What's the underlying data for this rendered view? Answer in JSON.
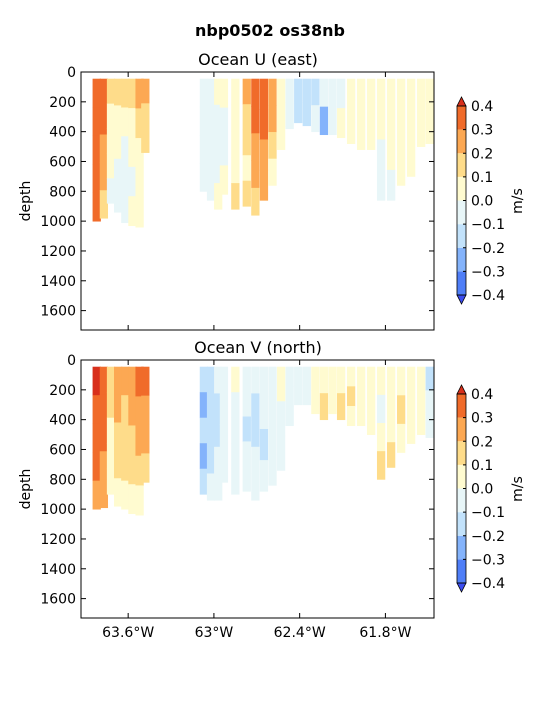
{
  "figure": {
    "title": "nbp0502 os38nb"
  },
  "chart_data": [
    {
      "type": "heatmap",
      "title": "Ocean U (east)",
      "ylabel": "depth",
      "y_inverted": true,
      "xlim": [
        -63.93,
        -61.46
      ],
      "ylim": [
        0,
        1730
      ],
      "yticks": [
        "0",
        "200",
        "400",
        "600",
        "800",
        "1000",
        "1200",
        "1400",
        "1600"
      ],
      "ytick_values": [
        0,
        200,
        400,
        600,
        800,
        1000,
        1200,
        1400,
        1600
      ],
      "xtick_values": [
        -63.6,
        -63.0,
        -62.4,
        -61.8
      ],
      "colorbar": {
        "label": "m/s",
        "levels": [
          -0.4,
          -0.3,
          -0.2,
          -0.1,
          0.0,
          0.1,
          0.2,
          0.3,
          0.4
        ],
        "tick_labels": [
          "−0.4",
          "−0.3",
          "−0.2",
          "−0.1",
          "0.0",
          "0.1",
          "0.2",
          "0.3",
          "0.4"
        ],
        "colors": [
          "#3b4cf0",
          "#4f7ef7",
          "#84b3fb",
          "#c2e2fb",
          "#e8f6f8",
          "#fffbd0",
          "#fedc8a",
          "#fca853",
          "#f06b2a",
          "#d8301c"
        ],
        "extend": "both"
      },
      "profiles": [
        {
          "lon": -63.82,
          "max_depth": 1000,
          "values": [
            0.36,
            0.38,
            0.35,
            0.32,
            0.3
          ]
        },
        {
          "lon": -63.77,
          "max_depth": 980,
          "values": [
            0.34,
            0.3,
            0.25,
            0.22,
            0.15
          ]
        },
        {
          "lon": -63.72,
          "max_depth": 880,
          "values": [
            0.12,
            0.08,
            0.02,
            0.0,
            -0.02
          ]
        },
        {
          "lon": -63.67,
          "max_depth": 940,
          "values": [
            0.1,
            0.05,
            0.0,
            -0.02,
            -0.05
          ]
        },
        {
          "lon": -63.62,
          "max_depth": 1010,
          "values": [
            0.14,
            0.06,
            -0.02,
            -0.05,
            -0.06
          ]
        },
        {
          "lon": -63.57,
          "max_depth": 1030,
          "values": [
            0.16,
            0.08,
            0.0,
            -0.04,
            0.02
          ]
        },
        {
          "lon": -63.52,
          "max_depth": 1040,
          "values": [
            0.2,
            0.12,
            0.04,
            0.02,
            0.04
          ]
        },
        {
          "lon": -63.48,
          "max_depth": 540,
          "values": [
            0.22,
            0.18,
            0.12
          ]
        },
        {
          "lon": -63.07,
          "max_depth": 800,
          "values": [
            -0.08,
            -0.06,
            -0.04,
            -0.05
          ]
        },
        {
          "lon": -63.02,
          "max_depth": 860,
          "values": [
            -0.06,
            -0.05,
            -0.04,
            -0.06
          ]
        },
        {
          "lon": -62.97,
          "max_depth": 920,
          "values": [
            0.02,
            -0.02,
            -0.06,
            -0.08,
            0.02
          ]
        },
        {
          "lon": -62.93,
          "max_depth": 820,
          "values": [
            0.04,
            -0.03,
            -0.05,
            0.0
          ]
        },
        {
          "lon": -62.85,
          "max_depth": 920,
          "values": [
            0.08,
            0.05,
            0.04,
            0.06,
            0.1
          ]
        },
        {
          "lon": -62.77,
          "max_depth": 900,
          "values": [
            0.2,
            0.16,
            0.1,
            0.08,
            0.12
          ]
        },
        {
          "lon": -62.71,
          "max_depth": 960,
          "values": [
            0.32,
            0.34,
            0.28,
            0.22,
            0.16
          ]
        },
        {
          "lon": -62.65,
          "max_depth": 860,
          "values": [
            0.36,
            0.32,
            0.26,
            0.2
          ]
        },
        {
          "lon": -62.59,
          "max_depth": 760,
          "values": [
            0.28,
            0.2,
            0.14,
            0.08
          ]
        },
        {
          "lon": -62.53,
          "max_depth": 520,
          "values": [
            0.04,
            0.02,
            0.0
          ]
        },
        {
          "lon": -62.47,
          "max_depth": 380,
          "values": [
            -0.06,
            -0.05
          ]
        },
        {
          "lon": -62.41,
          "max_depth": 340,
          "values": [
            -0.18,
            -0.16
          ]
        },
        {
          "lon": -62.35,
          "max_depth": 360,
          "values": [
            -0.16,
            -0.12
          ]
        },
        {
          "lon": -62.29,
          "max_depth": 400,
          "values": [
            -0.12,
            -0.1
          ]
        },
        {
          "lon": -62.23,
          "max_depth": 420,
          "values": [
            -0.1,
            -0.24
          ]
        },
        {
          "lon": -62.17,
          "max_depth": 420,
          "values": [
            -0.08,
            -0.06
          ]
        },
        {
          "lon": -62.11,
          "max_depth": 440,
          "values": [
            -0.04,
            0.0
          ]
        },
        {
          "lon": -62.04,
          "max_depth": 480,
          "values": [
            0.02,
            0.0,
            0.02
          ]
        },
        {
          "lon": -61.97,
          "max_depth": 520,
          "values": [
            0.04,
            0.02,
            0.02
          ]
        },
        {
          "lon": -61.9,
          "max_depth": 520,
          "values": [
            0.03,
            0.06,
            0.04
          ]
        },
        {
          "lon": -61.83,
          "max_depth": 860,
          "values": [
            0.02,
            0.0,
            -0.04,
            -0.05
          ]
        },
        {
          "lon": -61.76,
          "max_depth": 860,
          "values": [
            0.04,
            0.02,
            0.0,
            -0.04
          ]
        },
        {
          "lon": -61.69,
          "max_depth": 760,
          "values": [
            0.06,
            0.04,
            0.02,
            0.0
          ]
        },
        {
          "lon": -61.62,
          "max_depth": 700,
          "values": [
            0.08,
            0.06,
            0.04
          ]
        },
        {
          "lon": -61.55,
          "max_depth": 500,
          "values": [
            0.06,
            0.06,
            0.04
          ]
        },
        {
          "lon": -61.49,
          "max_depth": 480,
          "values": [
            0.04,
            0.02,
            0.04
          ]
        }
      ]
    },
    {
      "type": "heatmap",
      "title": "Ocean V (north)",
      "ylabel": "depth",
      "y_inverted": true,
      "xlim": [
        -63.93,
        -61.46
      ],
      "ylim": [
        0,
        1730
      ],
      "yticks": [
        "0",
        "200",
        "400",
        "600",
        "800",
        "1000",
        "1200",
        "1400",
        "1600"
      ],
      "ytick_values": [
        0,
        200,
        400,
        600,
        800,
        1000,
        1200,
        1400,
        1600
      ],
      "xticks": [
        "63.6°W",
        "63°W",
        "62.4°W",
        "61.8°W"
      ],
      "xtick_values": [
        -63.6,
        -63.0,
        -62.4,
        -61.8
      ],
      "colorbar": {
        "label": "m/s",
        "levels": [
          -0.4,
          -0.3,
          -0.2,
          -0.1,
          0.0,
          0.1,
          0.2,
          0.3,
          0.4
        ],
        "tick_labels": [
          "−0.4",
          "−0.3",
          "−0.2",
          "−0.1",
          "0.0",
          "0.1",
          "0.2",
          "0.3",
          "0.4"
        ],
        "colors": [
          "#3b4cf0",
          "#4f7ef7",
          "#84b3fb",
          "#c2e2fb",
          "#e8f6f8",
          "#fffbd0",
          "#fedc8a",
          "#fca853",
          "#f06b2a",
          "#d8301c"
        ],
        "extend": "both"
      },
      "profiles": [
        {
          "lon": -63.82,
          "max_depth": 1000,
          "values": [
            0.42,
            0.38,
            0.36,
            0.34,
            0.28
          ]
        },
        {
          "lon": -63.77,
          "max_depth": 990,
          "values": [
            0.36,
            0.34,
            0.3,
            0.26,
            0.2
          ]
        },
        {
          "lon": -63.72,
          "max_depth": 900,
          "values": [
            0.18,
            0.12,
            0.08,
            0.05,
            0.04
          ]
        },
        {
          "lon": -63.67,
          "max_depth": 980,
          "values": [
            0.24,
            0.2,
            0.16,
            0.1,
            0.04
          ]
        },
        {
          "lon": -63.62,
          "max_depth": 1000,
          "values": [
            0.26,
            0.18,
            0.14,
            0.12,
            0.06
          ]
        },
        {
          "lon": -63.57,
          "max_depth": 1030,
          "values": [
            0.28,
            0.22,
            0.18,
            0.14,
            0.06
          ]
        },
        {
          "lon": -63.52,
          "max_depth": 1040,
          "values": [
            0.3,
            0.24,
            0.2,
            0.14,
            0.08
          ]
        },
        {
          "lon": -63.48,
          "max_depth": 820,
          "values": [
            0.34,
            0.26,
            0.22,
            0.14
          ]
        },
        {
          "lon": -63.07,
          "max_depth": 900,
          "values": [
            -0.2,
            -0.22,
            -0.14,
            -0.24,
            -0.14
          ]
        },
        {
          "lon": -63.02,
          "max_depth": 940,
          "values": [
            -0.14,
            -0.18,
            -0.16,
            -0.12,
            -0.1
          ]
        },
        {
          "lon": -62.97,
          "max_depth": 940,
          "values": [
            -0.1,
            -0.12,
            -0.14,
            -0.1,
            -0.08
          ]
        },
        {
          "lon": -62.93,
          "max_depth": 820,
          "values": [
            -0.06,
            -0.08,
            -0.1,
            -0.08
          ]
        },
        {
          "lon": -62.85,
          "max_depth": 900,
          "values": [
            0.06,
            -0.04,
            -0.06,
            -0.08,
            -0.06
          ]
        },
        {
          "lon": -62.77,
          "max_depth": 880,
          "values": [
            -0.06,
            -0.08,
            -0.12,
            -0.08,
            -0.04
          ]
        },
        {
          "lon": -62.71,
          "max_depth": 940,
          "values": [
            -0.1,
            -0.12,
            -0.14,
            -0.1,
            -0.06
          ]
        },
        {
          "lon": -62.65,
          "max_depth": 880,
          "values": [
            -0.08,
            -0.1,
            -0.12,
            -0.06
          ]
        },
        {
          "lon": -62.59,
          "max_depth": 840,
          "values": [
            -0.04,
            -0.06,
            -0.1,
            -0.04
          ]
        },
        {
          "lon": -62.53,
          "max_depth": 740,
          "values": [
            0.02,
            -0.02,
            -0.04
          ]
        },
        {
          "lon": -62.47,
          "max_depth": 440,
          "values": [
            -0.02,
            -0.04,
            -0.06
          ]
        },
        {
          "lon": -62.41,
          "max_depth": 300,
          "values": [
            -0.04,
            -0.06
          ]
        },
        {
          "lon": -62.35,
          "max_depth": 300,
          "values": [
            -0.02,
            -0.04
          ]
        },
        {
          "lon": -62.29,
          "max_depth": 360,
          "values": [
            0.02,
            0.04
          ]
        },
        {
          "lon": -62.23,
          "max_depth": 400,
          "values": [
            0.04,
            0.14
          ]
        },
        {
          "lon": -62.17,
          "max_depth": 360,
          "values": [
            0.02,
            0.06
          ]
        },
        {
          "lon": -62.11,
          "max_depth": 400,
          "values": [
            0.04,
            0.14
          ]
        },
        {
          "lon": -62.04,
          "max_depth": 440,
          "values": [
            0.06,
            0.12,
            0.06
          ]
        },
        {
          "lon": -61.97,
          "max_depth": 440,
          "values": [
            0.08,
            0.06,
            0.04
          ]
        },
        {
          "lon": -61.9,
          "max_depth": 500,
          "values": [
            0.04,
            0.06,
            0.06
          ]
        },
        {
          "lon": -61.83,
          "max_depth": 800,
          "values": [
            0.02,
            -0.02,
            0.04,
            0.14
          ]
        },
        {
          "lon": -61.76,
          "max_depth": 720,
          "values": [
            0.02,
            0.04,
            0.08,
            0.12
          ]
        },
        {
          "lon": -61.69,
          "max_depth": 620,
          "values": [
            0.06,
            0.12,
            0.04
          ]
        },
        {
          "lon": -61.62,
          "max_depth": 560,
          "values": [
            0.04,
            0.08,
            0.04
          ]
        },
        {
          "lon": -61.55,
          "max_depth": 500,
          "values": [
            0.0,
            0.02,
            0.04
          ]
        },
        {
          "lon": -61.49,
          "max_depth": 520,
          "values": [
            -0.2,
            -0.06,
            -0.02
          ]
        }
      ]
    }
  ]
}
